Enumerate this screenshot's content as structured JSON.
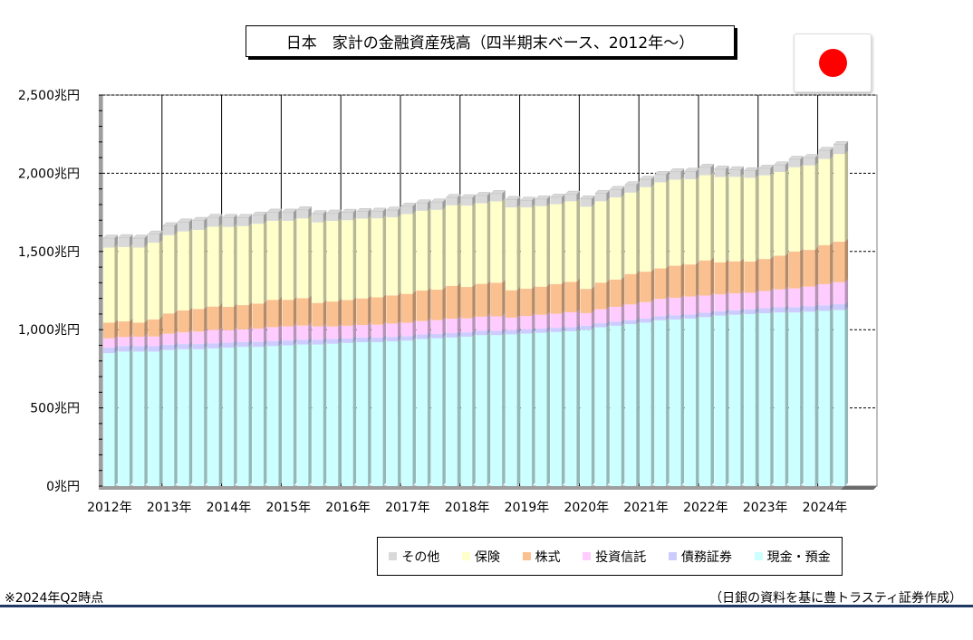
{
  "header": {
    "title": "日本　家計の金融資産残高（四半期末ベース、2012年～）",
    "flag_icon": "japan-flag-icon"
  },
  "footer": {
    "note": "※2024年Q2時点",
    "source": "（日銀の資料を基に豊トラスティ証券作成）"
  },
  "chart_data": {
    "type": "bar",
    "stacked": true,
    "title": "日本　家計の金融資産残高（四半期末ベース、2012年～）",
    "categories": [
      "2012Q1",
      "2012Q2",
      "2012Q3",
      "2012Q4",
      "2013Q1",
      "2013Q2",
      "2013Q3",
      "2013Q4",
      "2014Q1",
      "2014Q2",
      "2014Q3",
      "2014Q4",
      "2015Q1",
      "2015Q2",
      "2015Q3",
      "2015Q4",
      "2016Q1",
      "2016Q2",
      "2016Q3",
      "2016Q4",
      "2017Q1",
      "2017Q2",
      "2017Q3",
      "2017Q4",
      "2018Q1",
      "2018Q2",
      "2018Q3",
      "2018Q4",
      "2019Q1",
      "2019Q2",
      "2019Q3",
      "2019Q4",
      "2020Q1",
      "2020Q2",
      "2020Q3",
      "2020Q4",
      "2021Q1",
      "2021Q2",
      "2021Q3",
      "2021Q4",
      "2022Q1",
      "2022Q2",
      "2022Q3",
      "2022Q4",
      "2023Q1",
      "2023Q2",
      "2023Q3",
      "2023Q4",
      "2024Q1",
      "2024Q2"
    ],
    "x_tick_labels": [
      "2012年",
      "2013年",
      "2014年",
      "2015年",
      "2016年",
      "2017年",
      "2018年",
      "2019年",
      "2020年",
      "2021年",
      "2022年",
      "2023年",
      "2024年"
    ],
    "y_tick_labels": [
      "0兆円",
      "500兆円",
      "1,000兆円",
      "1,500兆円",
      "2,000兆円",
      "2,500兆円"
    ],
    "ylim": [
      0,
      2500
    ],
    "ytick_step": 500,
    "unit": "兆円",
    "legend_position": "bottom-right",
    "series": [
      {
        "name": "現金・預金",
        "color": "#ccffff",
        "values": [
          850,
          860,
          860,
          860,
          870,
          875,
          875,
          880,
          885,
          890,
          890,
          895,
          900,
          905,
          905,
          910,
          915,
          920,
          920,
          925,
          930,
          940,
          945,
          950,
          955,
          965,
          965,
          970,
          975,
          980,
          985,
          990,
          1000,
          1015,
          1025,
          1035,
          1045,
          1060,
          1065,
          1070,
          1080,
          1090,
          1095,
          1100,
          1105,
          1110,
          1110,
          1115,
          1120,
          1125
        ]
      },
      {
        "name": "債務証券",
        "color": "#ccccff",
        "values": [
          35,
          35,
          35,
          34,
          34,
          33,
          33,
          33,
          32,
          32,
          32,
          31,
          31,
          31,
          31,
          30,
          30,
          30,
          30,
          29,
          29,
          29,
          28,
          28,
          28,
          28,
          27,
          27,
          27,
          27,
          27,
          26,
          26,
          26,
          26,
          26,
          26,
          27,
          27,
          27,
          28,
          28,
          29,
          30,
          32,
          33,
          34,
          35,
          36,
          38
        ]
      },
      {
        "name": "投資信託",
        "color": "#ffccff",
        "values": [
          60,
          58,
          60,
          62,
          70,
          75,
          80,
          85,
          80,
          80,
          85,
          90,
          90,
          90,
          85,
          80,
          80,
          80,
          82,
          85,
          85,
          86,
          88,
          92,
          90,
          90,
          93,
          80,
          85,
          88,
          90,
          95,
          80,
          90,
          95,
          100,
          105,
          110,
          112,
          115,
          110,
          108,
          108,
          106,
          110,
          115,
          120,
          125,
          135,
          140
        ]
      },
      {
        "name": "株式",
        "color": "#fac090",
        "values": [
          100,
          100,
          90,
          110,
          130,
          140,
          145,
          150,
          150,
          155,
          160,
          175,
          170,
          175,
          150,
          160,
          165,
          170,
          175,
          180,
          185,
          195,
          195,
          210,
          200,
          210,
          215,
          175,
          175,
          180,
          190,
          195,
          155,
          170,
          175,
          195,
          195,
          195,
          205,
          205,
          225,
          205,
          205,
          200,
          205,
          215,
          235,
          235,
          250,
          260
        ]
      },
      {
        "name": "保険",
        "color": "#ffffcc",
        "values": [
          480,
          475,
          480,
          490,
          500,
          505,
          505,
          510,
          510,
          505,
          510,
          505,
          505,
          510,
          515,
          515,
          510,
          510,
          505,
          500,
          510,
          510,
          510,
          515,
          520,
          515,
          520,
          530,
          520,
          515,
          510,
          515,
          525,
          520,
          525,
          520,
          540,
          550,
          550,
          545,
          545,
          545,
          540,
          535,
          535,
          535,
          540,
          540,
          550,
          560
        ]
      },
      {
        "name": "その他",
        "color": "#d9d9d9",
        "values": [
          60,
          60,
          60,
          55,
          60,
          60,
          60,
          60,
          60,
          55,
          55,
          55,
          55,
          55,
          55,
          50,
          50,
          45,
          45,
          45,
          50,
          50,
          50,
          50,
          50,
          50,
          50,
          50,
          45,
          45,
          45,
          45,
          50,
          50,
          50,
          50,
          50,
          50,
          50,
          50,
          50,
          50,
          45,
          45,
          45,
          45,
          50,
          50,
          55,
          60
        ]
      }
    ]
  }
}
